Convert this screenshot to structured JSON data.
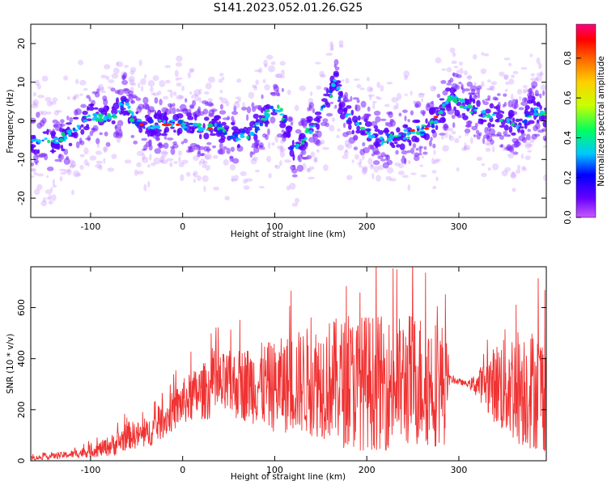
{
  "title": "S141.2023.052.01.26.G25",
  "chart_data": [
    {
      "type": "heatmap",
      "xlabel": "Height of straight line (km)",
      "ylabel": "Frequency (Hz)",
      "xlim": [
        -165,
        395
      ],
      "ylim": [
        -25,
        25
      ],
      "xticks": [
        -100,
        0,
        100,
        200,
        300
      ],
      "yticks": [
        -20,
        -10,
        0,
        10,
        20
      ],
      "colorbar": {
        "label": "Normalized spectral amplitude",
        "range": [
          0.0,
          0.97
        ],
        "ticks": [
          0.0,
          0.2,
          0.4,
          0.6,
          0.8
        ],
        "colormap": "rainbow"
      },
      "ridge_center": [
        [
          -165,
          -5
        ],
        [
          -140,
          -6
        ],
        [
          -120,
          -3
        ],
        [
          -100,
          2
        ],
        [
          -85,
          0
        ],
        [
          -72,
          2
        ],
        [
          -63,
          5
        ],
        [
          -55,
          1
        ],
        [
          -45,
          -1
        ],
        [
          -30,
          -1
        ],
        [
          -10,
          -1
        ],
        [
          0,
          -1
        ],
        [
          20,
          -2
        ],
        [
          40,
          -2
        ],
        [
          60,
          -4
        ],
        [
          75,
          -3
        ],
        [
          90,
          1
        ],
        [
          100,
          4
        ],
        [
          108,
          2
        ],
        [
          120,
          -8
        ],
        [
          130,
          -5
        ],
        [
          145,
          0
        ],
        [
          160,
          6
        ],
        [
          165,
          11
        ],
        [
          175,
          2
        ],
        [
          195,
          -2
        ],
        [
          215,
          -5
        ],
        [
          235,
          -4
        ],
        [
          250,
          -3
        ],
        [
          265,
          -2
        ],
        [
          280,
          2
        ],
        [
          290,
          6
        ],
        [
          305,
          4
        ],
        [
          320,
          2
        ],
        [
          335,
          1
        ],
        [
          350,
          0
        ],
        [
          365,
          -2
        ],
        [
          380,
          3
        ],
        [
          395,
          1
        ]
      ],
      "hot_points": [
        [
          -45,
          -1
        ],
        [
          -20,
          -1
        ],
        [
          -15,
          -1
        ],
        [
          -5,
          -1
        ],
        [
          30,
          -2
        ],
        [
          250,
          -2.5
        ],
        [
          265,
          -2
        ],
        [
          275,
          1
        ]
      ]
    },
    {
      "type": "line",
      "xlabel": "Height of straight line (km)",
      "ylabel": "SNR (10 * v/v)",
      "xlim": [
        -165,
        395
      ],
      "ylim": [
        0,
        760
      ],
      "xticks": [
        -100,
        0,
        100,
        200,
        300
      ],
      "yticks": [
        0,
        200,
        400,
        600
      ],
      "color": "#f03232",
      "envelope": {
        "x": [
          -165,
          -120,
          -90,
          -70,
          -60,
          -40,
          -20,
          0,
          20,
          40,
          60,
          80,
          100,
          130,
          160,
          180,
          200,
          230,
          250,
          270,
          285,
          290,
          310,
          330,
          350,
          370,
          395
        ],
        "mean": [
          10,
          25,
          45,
          70,
          100,
          100,
          160,
          230,
          270,
          290,
          300,
          300,
          290,
          310,
          320,
          300,
          310,
          300,
          320,
          310,
          300,
          320,
          300,
          300,
          300,
          290,
          270
        ],
        "spread": [
          8,
          15,
          30,
          50,
          55,
          55,
          70,
          90,
          110,
          130,
          140,
          160,
          180,
          210,
          240,
          260,
          270,
          260,
          270,
          260,
          240,
          15,
          10,
          100,
          220,
          240,
          240
        ]
      }
    }
  ]
}
